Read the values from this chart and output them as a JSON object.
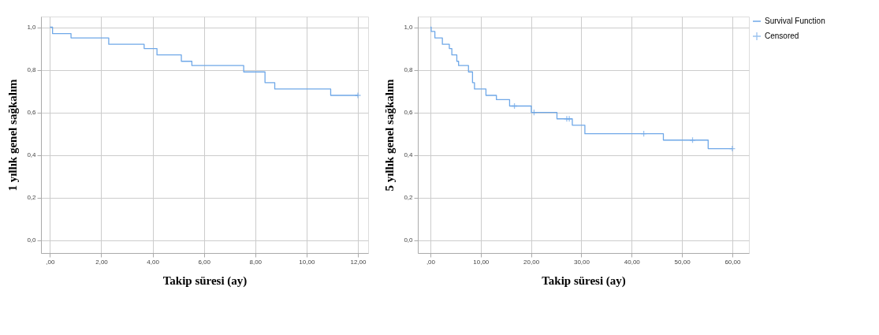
{
  "chart_data": [
    {
      "type": "step",
      "xlabel": "Takip süresi (ay)",
      "ylabel": "1 yıllık genel sağkalım",
      "xlim": [
        -0.35,
        12.4
      ],
      "xticks": [
        {
          "value": 0,
          "label": ",00"
        },
        {
          "value": 2,
          "label": "2,00"
        },
        {
          "value": 4,
          "label": "4,00"
        },
        {
          "value": 6,
          "label": "6,00"
        },
        {
          "value": 8,
          "label": "8,00"
        },
        {
          "value": 10,
          "label": "10,00"
        },
        {
          "value": 12,
          "label": "12,00"
        }
      ],
      "ylim": [
        -0.06,
        1.05
      ],
      "yticks": [
        {
          "value": 0,
          "label": "0,0"
        },
        {
          "value": 0.2,
          "label": "0,2"
        },
        {
          "value": 0.4,
          "label": "0,4"
        },
        {
          "value": 0.6,
          "label": "0,6"
        },
        {
          "value": 0.8,
          "label": "0,8"
        },
        {
          "value": 1,
          "label": "1,0"
        }
      ],
      "grid": true,
      "legend": false,
      "line_style": "solid",
      "series": [
        {
          "marker": "none",
          "color": "#6fa8e8",
          "x": [
            0,
            0.1,
            0.82,
            2.29,
            3.67,
            4.17,
            5.12,
            5.53,
            7.55,
            8.38,
            8.76,
            10.94,
            12
          ],
          "values": [
            1.0,
            0.97,
            0.95,
            0.92,
            0.9,
            0.87,
            0.84,
            0.82,
            0.79,
            0.74,
            0.71,
            0.68,
            0.68
          ]
        },
        {
          "type": "scatter",
          "marker": "cross",
          "color": "#6fa8e8",
          "x": [
            12
          ],
          "values": [
            0.68
          ]
        }
      ]
    },
    {
      "type": "step",
      "xlabel": "Takip süresi (ay)",
      "ylabel": "5 yıllık genel sağkalım",
      "xlim": [
        -2.5,
        63.3
      ],
      "xticks": [
        {
          "value": 0,
          "label": ",00"
        },
        {
          "value": 10,
          "label": "10,00"
        },
        {
          "value": 20,
          "label": "20,00"
        },
        {
          "value": 30,
          "label": "30,00"
        },
        {
          "value": 40,
          "label": "40,00"
        },
        {
          "value": 50,
          "label": "50,00"
        },
        {
          "value": 60,
          "label": "60,00"
        }
      ],
      "ylim": [
        -0.06,
        1.05
      ],
      "yticks": [
        {
          "value": 0,
          "label": "0,0"
        },
        {
          "value": 0.2,
          "label": "0,2"
        },
        {
          "value": 0.4,
          "label": "0,4"
        },
        {
          "value": 0.6,
          "label": "0,6"
        },
        {
          "value": 0.8,
          "label": "0,8"
        },
        {
          "value": 1,
          "label": "1,0"
        }
      ],
      "grid": true,
      "legend": "top right",
      "line_style": "solid",
      "series": [
        {
          "name": "Survival Function",
          "marker": "none",
          "color": "#6fa8e8",
          "x": [
            0,
            0.15,
            0.89,
            2.38,
            3.76,
            4.26,
            5.25,
            5.6,
            7.57,
            8.37,
            8.76,
            11.04,
            13.12,
            15.74,
            20.05,
            25.15,
            28.2,
            30.7,
            46.3,
            55.2,
            60
          ],
          "values": [
            1.0,
            0.98,
            0.95,
            0.92,
            0.9,
            0.87,
            0.84,
            0.82,
            0.79,
            0.74,
            0.71,
            0.68,
            0.66,
            0.63,
            0.6,
            0.57,
            0.54,
            0.5,
            0.47,
            0.43,
            0.43
          ]
        },
        {
          "name": "Censored",
          "type": "scatter",
          "marker": "cross",
          "color": "#6fa8e8",
          "x": [
            16.7,
            20.6,
            27.1,
            27.6,
            42.4,
            52.1,
            60
          ],
          "values": [
            0.63,
            0.6,
            0.57,
            0.57,
            0.5,
            0.47,
            0.43
          ]
        }
      ]
    }
  ]
}
